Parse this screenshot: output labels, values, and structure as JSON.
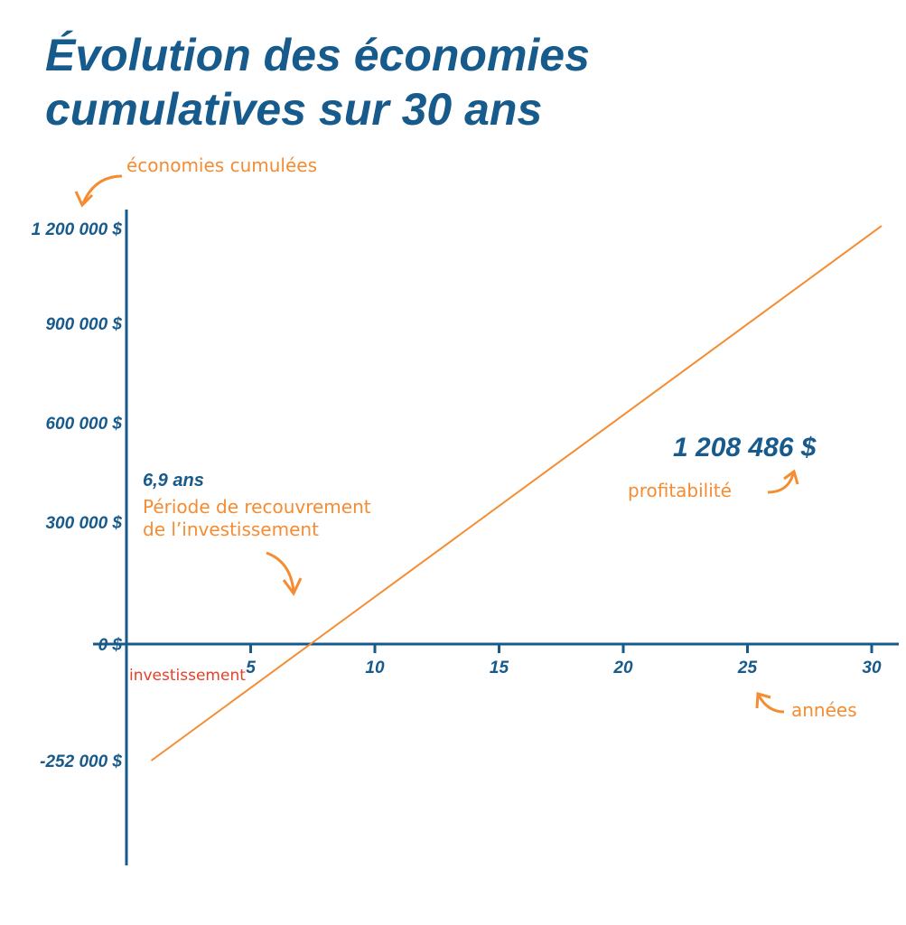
{
  "chart_data": {
    "type": "line",
    "title_lines": [
      "Évolution des économies",
      "cumulatives sur 30 ans"
    ],
    "ylabel": "économies cumulées",
    "xlabel": "années",
    "x_ticks": [
      5,
      10,
      15,
      20,
      25,
      30
    ],
    "y_ticks": [
      {
        "value": 1200000,
        "label": "1 200 000 $"
      },
      {
        "value": 900000,
        "label": "900 000 $"
      },
      {
        "value": 600000,
        "label": "600 000 $"
      },
      {
        "value": 300000,
        "label": "300 000 $"
      },
      {
        "value": 0,
        "label": "0 $"
      },
      {
        "value": -252000,
        "label": "-252 000 $"
      }
    ],
    "xlim": [
      0,
      31
    ],
    "series": [
      {
        "name": "économies cumulatives",
        "color": "#f58c32",
        "x": [
          1,
          30.4
        ],
        "y": [
          -252000,
          1208486
        ]
      }
    ],
    "annotations": {
      "payback_value": "6,9 ans",
      "payback_text": [
        "Période de recouvrement",
        "de l’investissement"
      ],
      "investment": "investissement",
      "final_value": "1 208 486 $",
      "profit": "profitabilité"
    },
    "colors": {
      "axis": "#175a8c",
      "accent": "#f58c32",
      "investment": "#e8402a"
    }
  }
}
